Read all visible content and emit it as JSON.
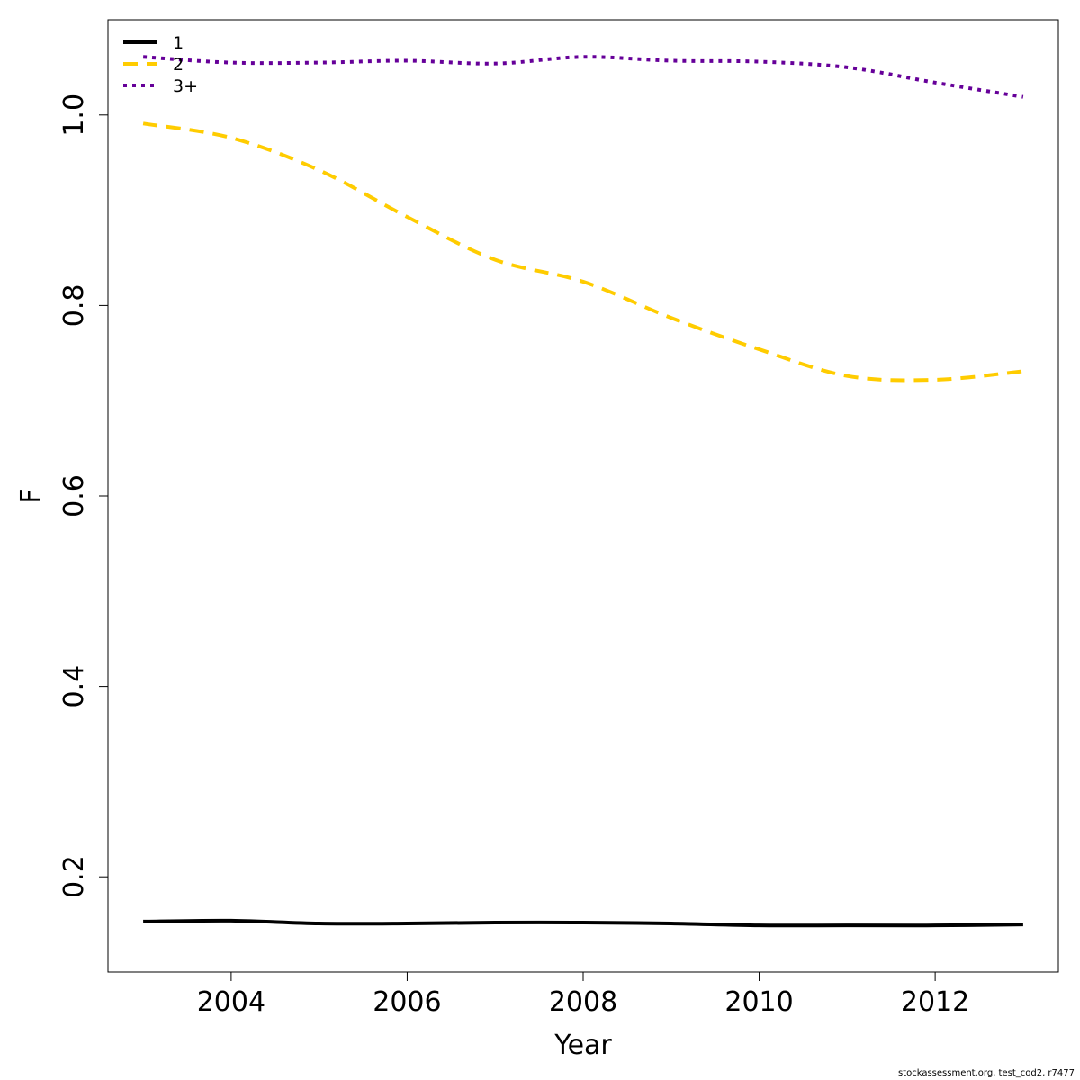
{
  "chart_data": {
    "type": "line",
    "xlabel": "Year",
    "ylabel": "F",
    "xlim": [
      2002.6,
      2013.4
    ],
    "ylim": [
      0.1,
      1.1
    ],
    "xticks": [
      2004,
      2006,
      2008,
      2010,
      2012
    ],
    "yticks": [
      0.2,
      0.4,
      0.6,
      0.8,
      1.0
    ],
    "ytick_labels": [
      "0.2",
      "0.4",
      "0.6",
      "0.8",
      "1.0"
    ],
    "grid": false,
    "legend_position": "top-left",
    "x": [
      2003,
      2004,
      2005,
      2006,
      2007,
      2008,
      2009,
      2010,
      2011,
      2012,
      2013
    ],
    "series": [
      {
        "name": "1",
        "color": "#000000",
        "dash": "solid",
        "values": [
          0.153,
          0.154,
          0.151,
          0.151,
          0.152,
          0.152,
          0.151,
          0.149,
          0.149,
          0.149,
          0.15
        ]
      },
      {
        "name": "2",
        "color": "#FFCC00",
        "dash": "dashed",
        "values": [
          0.991,
          0.976,
          0.942,
          0.893,
          0.848,
          0.825,
          0.787,
          0.754,
          0.726,
          0.722,
          0.731
        ]
      },
      {
        "name": "3+",
        "color": "#660099",
        "dash": "dotted",
        "values": [
          1.061,
          1.055,
          1.055,
          1.057,
          1.054,
          1.061,
          1.057,
          1.056,
          1.05,
          1.034,
          1.019
        ]
      }
    ]
  },
  "footer": {
    "credit": "stockassessment.org, test_cod2, r7477"
  }
}
